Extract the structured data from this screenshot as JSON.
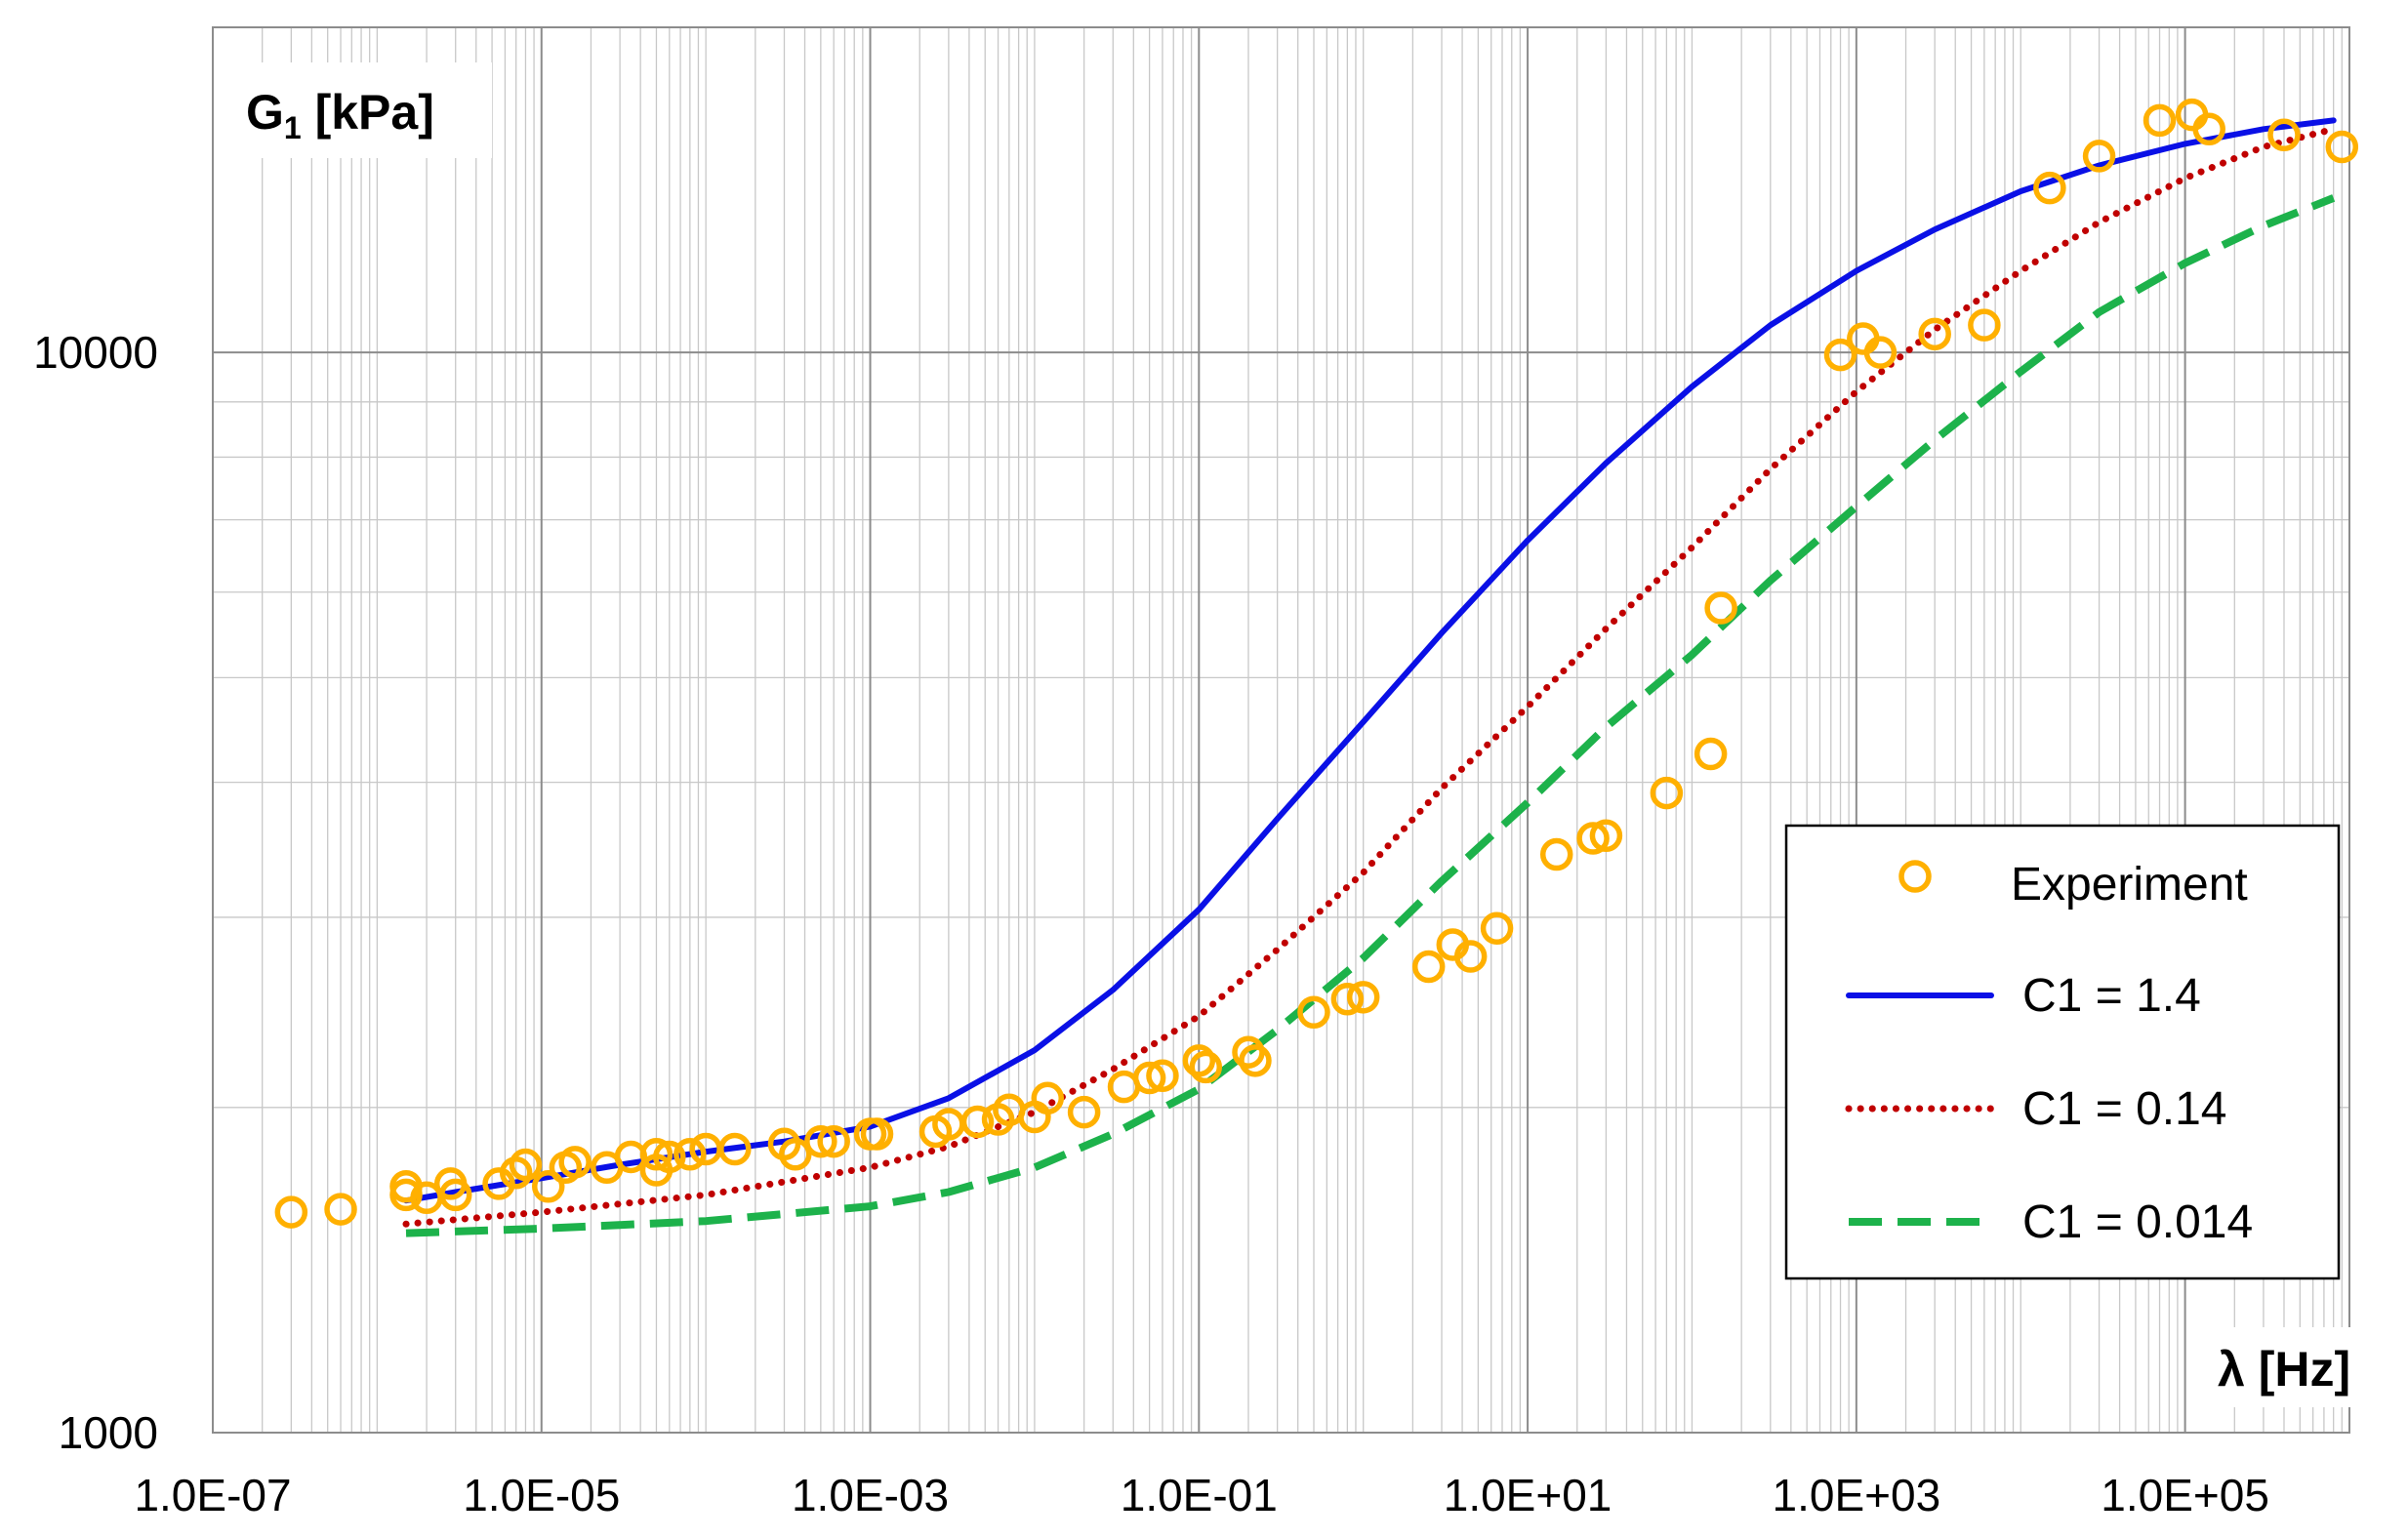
{
  "chart_data": {
    "type": "line",
    "title": "",
    "xlabel": "λ [Hz]",
    "ylabel_main": "G",
    "ylabel_sub": "1",
    "ylabel_unit": " [kPa]",
    "xscale": "log",
    "yscale": "log",
    "xlim": [
      1e-07,
      1000000.0
    ],
    "ylim": [
      1000,
      20000
    ],
    "grid": true,
    "legend_position": "right",
    "x_tick_labels": [
      "1.0E-07",
      "1.0E-05",
      "1.0E-03",
      "1.0E-01",
      "1.0E+01",
      "1.0E+03",
      "1.0E+05"
    ],
    "y_tick_labels": [
      "1000",
      "10000"
    ],
    "series": [
      {
        "name": "Experiment",
        "kind": "scatter",
        "color": "#FFB000",
        "points": [
          [
            3e-07,
            1600
          ],
          [
            6e-07,
            1610
          ],
          [
            1.5e-06,
            1660
          ],
          [
            1.5e-06,
            1690
          ],
          [
            2e-06,
            1650
          ],
          [
            2.8e-06,
            1700
          ],
          [
            3e-06,
            1660
          ],
          [
            5.5e-06,
            1700
          ],
          [
            7e-06,
            1740
          ],
          [
            8e-06,
            1770
          ],
          [
            1.1e-05,
            1690
          ],
          [
            1.4e-05,
            1760
          ],
          [
            1.6e-05,
            1780
          ],
          [
            2.5e-05,
            1760
          ],
          [
            3.5e-05,
            1800
          ],
          [
            5e-05,
            1750
          ],
          [
            5e-05,
            1810
          ],
          [
            6e-05,
            1800
          ],
          [
            8e-05,
            1810
          ],
          [
            0.0001,
            1830
          ],
          [
            0.00015,
            1830
          ],
          [
            0.0003,
            1850
          ],
          [
            0.00035,
            1810
          ],
          [
            0.0005,
            1860
          ],
          [
            0.0006,
            1860
          ],
          [
            0.001,
            1890
          ],
          [
            0.0011,
            1890
          ],
          [
            0.0025,
            1900
          ],
          [
            0.003,
            1930
          ],
          [
            0.0045,
            1940
          ],
          [
            0.006,
            1950
          ],
          [
            0.007,
            1990
          ],
          [
            0.01,
            1960
          ],
          [
            0.012,
            2040
          ],
          [
            0.02,
            1980
          ],
          [
            0.035,
            2090
          ],
          [
            0.05,
            2130
          ],
          [
            0.06,
            2140
          ],
          [
            0.1,
            2210
          ],
          [
            0.11,
            2180
          ],
          [
            0.2,
            2250
          ],
          [
            0.22,
            2210
          ],
          [
            0.5,
            2450
          ],
          [
            0.8,
            2520
          ],
          [
            1.0,
            2530
          ],
          [
            2.5,
            2700
          ],
          [
            3.5,
            2830
          ],
          [
            4.5,
            2760
          ],
          [
            6.5,
            2930
          ],
          [
            15.0,
            3430
          ],
          [
            25.0,
            3550
          ],
          [
            30.0,
            3570
          ],
          [
            70.0,
            3910
          ],
          [
            130.0,
            4250
          ],
          [
            150.0,
            5800
          ],
          [
            800.0,
            9950
          ],
          [
            1100.0,
            10300
          ],
          [
            1400.0,
            10000
          ],
          [
            3000.0,
            10400
          ],
          [
            6000.0,
            10600
          ],
          [
            15000.0,
            14200
          ],
          [
            30000.0,
            15200
          ],
          [
            70000.0,
            16400
          ],
          [
            110000.0,
            16600
          ],
          [
            140000.0,
            16100
          ],
          [
            400000.0,
            15900
          ],
          [
            900000.0,
            15500
          ]
        ]
      },
      {
        "name": "C1 = 1.4",
        "kind": "solid",
        "color": "#0A10E6",
        "points": [
          [
            1.5e-06,
            1640
          ],
          [
            3e-06,
            1670
          ],
          [
            1e-05,
            1720
          ],
          [
            3e-05,
            1770
          ],
          [
            0.0001,
            1820
          ],
          [
            0.0003,
            1860
          ],
          [
            0.001,
            1920
          ],
          [
            0.003,
            2040
          ],
          [
            0.01,
            2260
          ],
          [
            0.03,
            2570
          ],
          [
            0.1,
            3050
          ],
          [
            0.3,
            3700
          ],
          [
            1.0,
            4550
          ],
          [
            3.0,
            5500
          ],
          [
            10.0,
            6700
          ],
          [
            30.0,
            7900
          ],
          [
            100.0,
            9300
          ],
          [
            300.0,
            10600
          ],
          [
            1000.0,
            11900
          ],
          [
            3000.0,
            13000
          ],
          [
            10000.0,
            14100
          ],
          [
            30000.0,
            14900
          ],
          [
            100000.0,
            15600
          ],
          [
            300000.0,
            16100
          ],
          [
            800000.0,
            16400
          ]
        ]
      },
      {
        "name": "C1 = 0.14",
        "kind": "dotted",
        "color": "#C00000",
        "points": [
          [
            1.5e-06,
            1560
          ],
          [
            1e-05,
            1600
          ],
          [
            0.0001,
            1660
          ],
          [
            0.001,
            1760
          ],
          [
            0.003,
            1840
          ],
          [
            0.01,
            1980
          ],
          [
            0.03,
            2170
          ],
          [
            0.1,
            2430
          ],
          [
            0.3,
            2800
          ],
          [
            1.0,
            3300
          ],
          [
            3.0,
            3950
          ],
          [
            10.0,
            4700
          ],
          [
            30.0,
            5550
          ],
          [
            100.0,
            6600
          ],
          [
            300.0,
            7800
          ],
          [
            1000.0,
            9200
          ],
          [
            3000.0,
            10500
          ],
          [
            10000.0,
            11900
          ],
          [
            30000.0,
            13200
          ],
          [
            100000.0,
            14500
          ],
          [
            300000.0,
            15500
          ],
          [
            800000.0,
            16100
          ]
        ]
      },
      {
        "name": "C1 = 0.014",
        "kind": "dashed",
        "color": "#1DB24B",
        "points": [
          [
            1.5e-06,
            1530
          ],
          [
            1e-05,
            1545
          ],
          [
            0.0001,
            1570
          ],
          [
            0.001,
            1620
          ],
          [
            0.003,
            1670
          ],
          [
            0.01,
            1760
          ],
          [
            0.03,
            1890
          ],
          [
            0.1,
            2080
          ],
          [
            0.3,
            2360
          ],
          [
            1.0,
            2750
          ],
          [
            3.0,
            3240
          ],
          [
            10.0,
            3830
          ],
          [
            30.0,
            4500
          ],
          [
            100.0,
            5250
          ],
          [
            300.0,
            6150
          ],
          [
            1000.0,
            7200
          ],
          [
            3000.0,
            8300
          ],
          [
            10000.0,
            9600
          ],
          [
            30000.0,
            10900
          ],
          [
            100000.0,
            12100
          ],
          [
            300000.0,
            13100
          ],
          [
            800000.0,
            13900
          ]
        ]
      }
    ]
  }
}
